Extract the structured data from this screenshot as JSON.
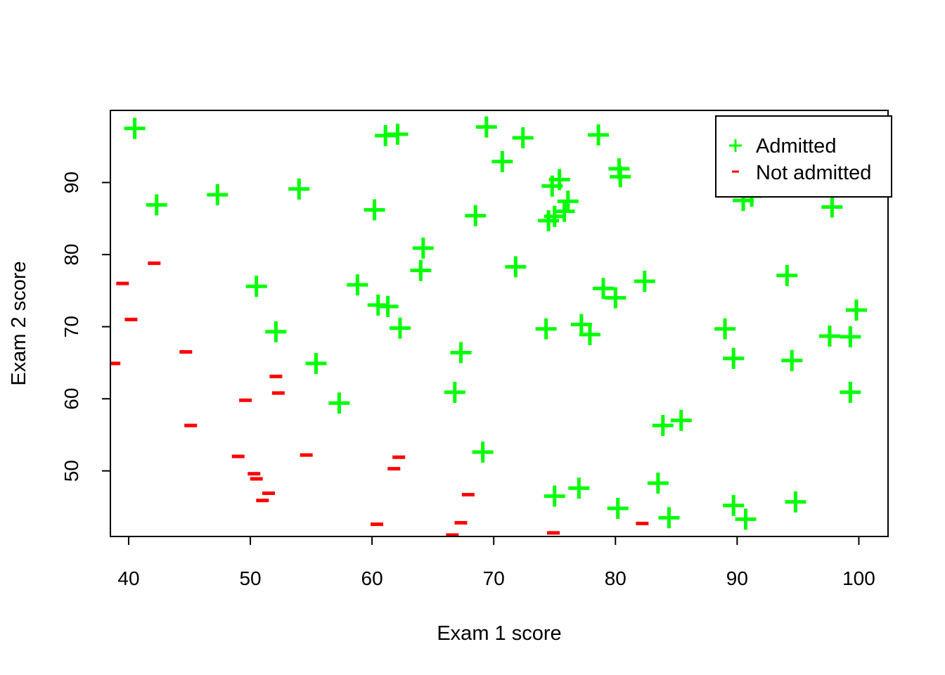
{
  "chart_data": {
    "type": "scatter",
    "title": "",
    "xlabel": "Exam 1 score",
    "ylabel": "Exam 2 score",
    "xlim": [
      38.5,
      102.4
    ],
    "ylim": [
      40.9,
      100.0
    ],
    "xticks": [
      40,
      50,
      60,
      70,
      80,
      90,
      100
    ],
    "yticks": [
      50,
      60,
      70,
      80,
      90
    ],
    "grid": false,
    "legend_position": "top-right",
    "series": [
      {
        "name": "Admitted",
        "marker": "+",
        "color": "#00ff00",
        "points": [
          [
            40.5,
            97.5
          ],
          [
            42.3,
            86.9
          ],
          [
            47.3,
            88.3
          ],
          [
            50.5,
            75.6
          ],
          [
            52.1,
            69.3
          ],
          [
            54.0,
            89.1
          ],
          [
            55.4,
            64.9
          ],
          [
            57.3,
            59.4
          ],
          [
            58.8,
            75.8
          ],
          [
            60.2,
            86.2
          ],
          [
            60.5,
            73.0
          ],
          [
            61.1,
            96.5
          ],
          [
            61.3,
            72.8
          ],
          [
            62.1,
            96.7
          ],
          [
            62.3,
            69.8
          ],
          [
            64.0,
            77.8
          ],
          [
            64.2,
            80.9
          ],
          [
            66.8,
            60.9
          ],
          [
            67.3,
            66.4
          ],
          [
            68.5,
            85.4
          ],
          [
            69.1,
            52.6
          ],
          [
            69.4,
            97.7
          ],
          [
            70.7,
            92.9
          ],
          [
            71.8,
            78.3
          ],
          [
            72.4,
            96.2
          ],
          [
            74.3,
            69.7
          ],
          [
            74.5,
            84.7
          ],
          [
            74.8,
            89.5
          ],
          [
            75.0,
            85.3
          ],
          [
            75.0,
            46.5
          ],
          [
            75.4,
            90.4
          ],
          [
            75.8,
            86.0
          ],
          [
            76.1,
            87.4
          ],
          [
            77.0,
            47.6
          ],
          [
            77.2,
            70.3
          ],
          [
            77.9,
            68.9
          ],
          [
            78.6,
            96.6
          ],
          [
            79.0,
            75.3
          ],
          [
            80.0,
            74.0
          ],
          [
            80.2,
            44.8
          ],
          [
            80.3,
            91.9
          ],
          [
            80.4,
            90.8
          ],
          [
            82.4,
            76.3
          ],
          [
            83.5,
            48.3
          ],
          [
            83.9,
            56.3
          ],
          [
            84.4,
            43.5
          ],
          [
            85.4,
            57.0
          ],
          [
            89.0,
            69.7
          ],
          [
            89.7,
            65.6
          ],
          [
            89.7,
            45.2
          ],
          [
            90.5,
            87.5
          ],
          [
            90.7,
            43.3
          ],
          [
            91.2,
            88.1
          ],
          [
            94.1,
            77.1
          ],
          [
            94.5,
            65.3
          ],
          [
            94.8,
            45.7
          ],
          [
            97.6,
            68.7
          ],
          [
            97.8,
            86.6
          ],
          [
            99.3,
            68.6
          ],
          [
            99.3,
            60.9
          ],
          [
            99.8,
            72.3
          ]
        ]
      },
      {
        "name": "Not admitted",
        "marker": "-",
        "color": "#ff0000",
        "points": [
          [
            38.8,
            64.9
          ],
          [
            39.5,
            76.0
          ],
          [
            40.2,
            71.0
          ],
          [
            42.1,
            78.8
          ],
          [
            44.7,
            66.5
          ],
          [
            45.1,
            56.3
          ],
          [
            49.0,
            52.0
          ],
          [
            49.6,
            59.8
          ],
          [
            50.3,
            49.6
          ],
          [
            50.5,
            48.9
          ],
          [
            51.0,
            45.9
          ],
          [
            51.5,
            46.9
          ],
          [
            52.1,
            63.1
          ],
          [
            52.3,
            60.8
          ],
          [
            54.6,
            52.2
          ],
          [
            60.4,
            42.6
          ],
          [
            61.8,
            50.3
          ],
          [
            62.2,
            51.9
          ],
          [
            66.6,
            41.1
          ],
          [
            67.3,
            42.8
          ],
          [
            67.9,
            46.7
          ],
          [
            74.9,
            41.4
          ],
          [
            82.2,
            42.7
          ]
        ]
      }
    ]
  }
}
